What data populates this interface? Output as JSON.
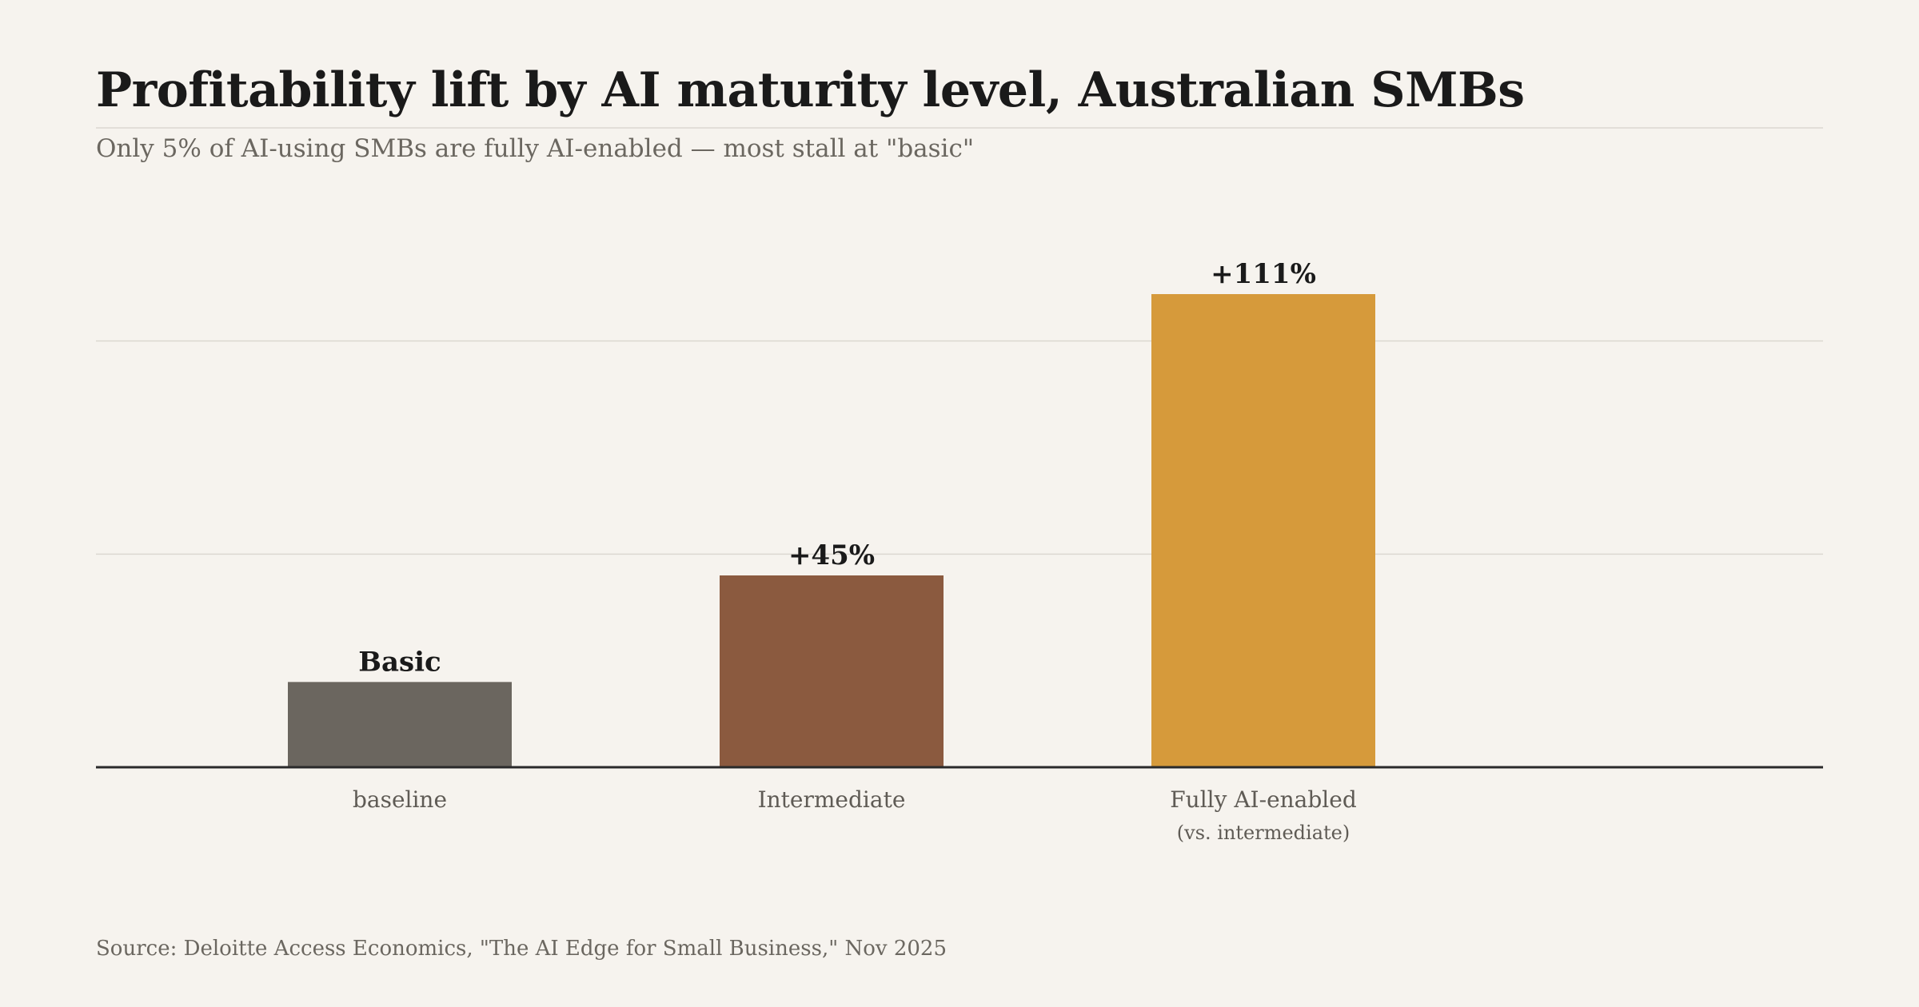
{
  "page": {
    "title": "Profitability lift by AI maturity level, Australian SMBs",
    "subtitle": "Only 5% of AI-using SMBs are fully AI-enabled — most stall at \"basic\"",
    "source": "Source: Deloitte Access Economics, \"The AI Edge for Small Business,\" Nov 2025"
  },
  "chart_data": {
    "type": "bar",
    "title": "Profitability lift by AI maturity level, Australian SMBs",
    "subtitle": "Only 5% of AI-using SMBs are fully AI-enabled — most stall at \"basic\"",
    "xlabel": "",
    "ylabel": "",
    "categories": [
      "baseline",
      "Intermediate",
      "Fully AI-enabled"
    ],
    "category_sublabels": [
      "",
      "",
      "(vs. intermediate)"
    ],
    "values": [
      20,
      45,
      111
    ],
    "value_labels": [
      "Basic",
      "+45%",
      "+111%"
    ],
    "colors": [
      "#6b665f",
      "#8b5a3f",
      "#d69a3b"
    ],
    "ylim": [
      0,
      150
    ],
    "grid": true,
    "legend": "none"
  }
}
